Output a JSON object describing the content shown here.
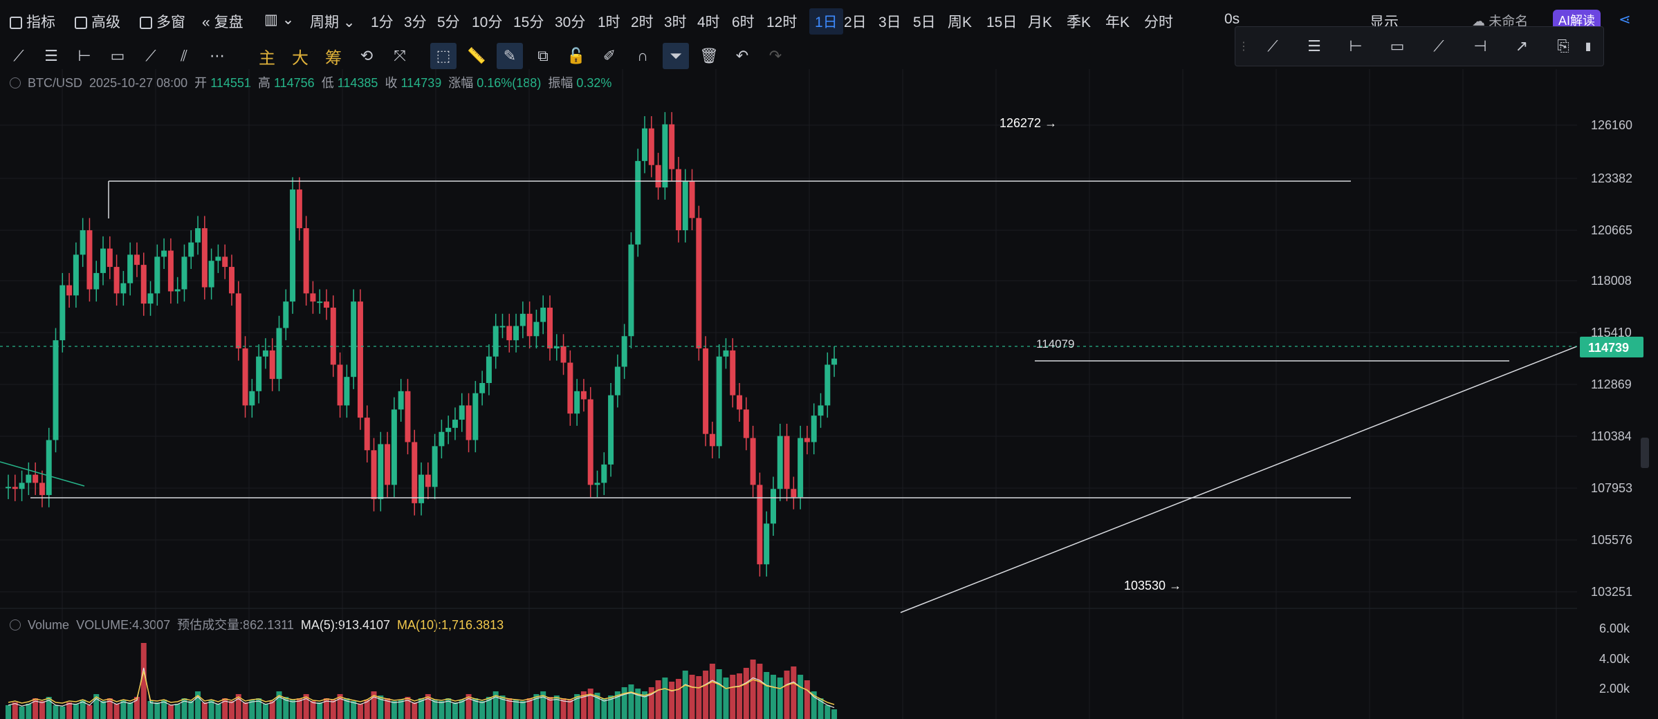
{
  "toolbar": {
    "indicators_label": "指标",
    "advanced_label": "高级",
    "multiwindow_label": "多窗",
    "replay_label": "复盘",
    "period_label": "周期",
    "intervals": [
      "1分",
      "3分",
      "5分",
      "10分",
      "15分",
      "30分",
      "1时",
      "2时",
      "3时",
      "4时",
      "6时",
      "12时",
      "1日",
      "2日",
      "3日",
      "5日",
      "周K",
      "15日",
      "月K",
      "季K",
      "年K",
      "分时"
    ],
    "active_interval": "1日",
    "countdown": "0s",
    "display_label": "显示",
    "more_label": "未命名",
    "ai_label": "AI解读"
  },
  "draw_toolbar": {
    "cn_tools": [
      "主",
      "大",
      "筹"
    ]
  },
  "legend": {
    "symbol": "BTC/USD",
    "datetime": "2025-10-27 08:00",
    "open_label": "开",
    "open": "114551",
    "high_label": "高",
    "high": "114756",
    "low_label": "低",
    "low": "114385",
    "close_label": "收",
    "close": "114739",
    "change_label": "涨幅",
    "change": "0.16%(188)",
    "amp_label": "振幅",
    "amp": "0.32%"
  },
  "volume_legend": {
    "name": "Volume",
    "volume": "VOLUME:4.3007",
    "est_label": "预估成交量:862.1311",
    "ma5": "MA(5):913.4107",
    "ma10": "MA(10):1,716.3813"
  },
  "annotations": {
    "high_marker": "126272",
    "low_marker": "103530",
    "level_marker": "114079"
  },
  "price_axis": {
    "ticks": [
      "126160",
      "123382",
      "120665",
      "118008",
      "115410",
      "112869",
      "110384",
      "107953",
      "105576",
      "103251"
    ],
    "current_price": "114739",
    "current_color": "#26b58a"
  },
  "volume_axis": {
    "ticks": [
      "6.00k",
      "4.00k",
      "2.00k"
    ]
  },
  "colors": {
    "up": "#26b58a",
    "down": "#e0424f",
    "accent": "#3d8bff",
    "ma10": "#f2c94c"
  }
}
